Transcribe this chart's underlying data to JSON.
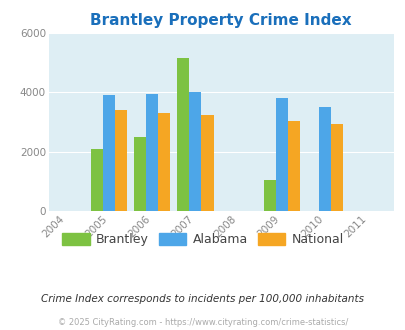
{
  "title": "Brantley Property Crime Index",
  "years": [
    2004,
    2005,
    2006,
    2007,
    2008,
    2009,
    2010,
    2011
  ],
  "bar_years": [
    2005,
    2006,
    2007,
    2009,
    2010
  ],
  "brantley": [
    2100,
    2500,
    5150,
    1050,
    null
  ],
  "alabama": [
    3900,
    3950,
    4000,
    3800,
    3500
  ],
  "national": [
    3400,
    3300,
    3250,
    3050,
    2950
  ],
  "brantley_color": "#7dc242",
  "alabama_color": "#4da6e8",
  "national_color": "#f5a623",
  "bg_color": "#deeef4",
  "ylim": [
    0,
    6000
  ],
  "yticks": [
    0,
    2000,
    4000,
    6000
  ],
  "tick_color": "#888888",
  "title_color": "#1a6fbb",
  "subtitle": "Crime Index corresponds to incidents per 100,000 inhabitants",
  "footer": "© 2025 CityRating.com - https://www.cityrating.com/crime-statistics/",
  "bar_width": 0.28,
  "legend_labels": [
    "Brantley",
    "Alabama",
    "National"
  ]
}
